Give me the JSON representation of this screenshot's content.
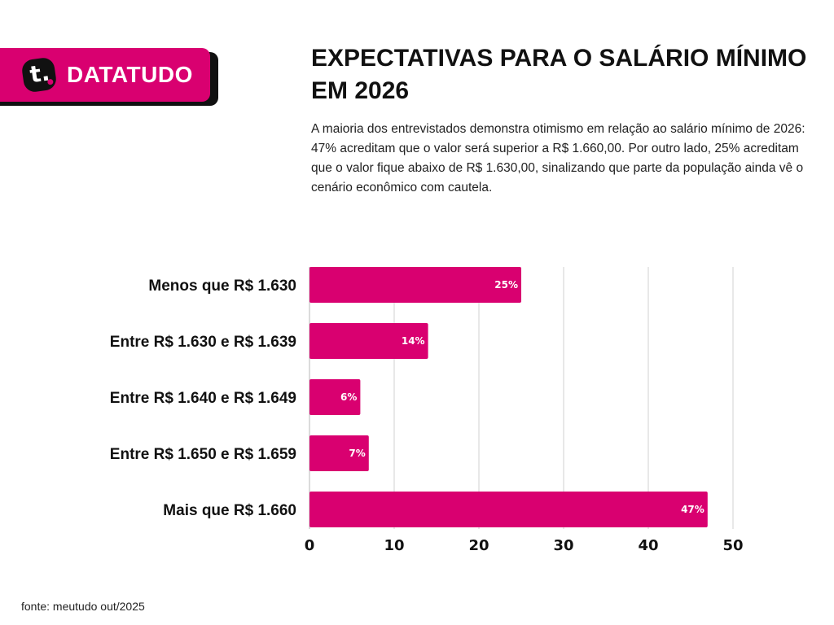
{
  "brand": {
    "name": "DATATUDO",
    "logo_letter": "t.",
    "color": "#d90070"
  },
  "header": {
    "title": "EXPECTATIVAS PARA O SALÁRIO MÍNIMO EM 2026",
    "subtitle": "A maioria dos entrevistados demonstra otimismo em relação ao salário mínimo de 2026: 47% acreditam que o valor será superior a R$ 1.660,00. Por outro lado, 25% acreditam que o valor fique abaixo de R$ 1.630,00, sinalizando que parte da população ainda vê o cenário econômico com cautela."
  },
  "footer": {
    "source": "fonte: meutudo out/2025"
  },
  "chart_data": {
    "type": "bar",
    "orientation": "horizontal",
    "categories": [
      "Menos que R$ 1.630",
      "Entre R$ 1.630 e R$ 1.639",
      "Entre R$ 1.640 e R$ 1.649",
      "Entre R$ 1.650 e R$ 1.659",
      "Mais que R$ 1.660"
    ],
    "values": [
      25,
      14,
      6,
      7,
      47
    ],
    "data_labels": [
      "25%",
      "14%",
      "6%",
      "7%",
      "47%"
    ],
    "xlim": [
      0,
      50
    ],
    "xticks": [
      "0",
      "10",
      "20",
      "30",
      "40",
      "50"
    ],
    "grid": true,
    "bar_color": "#d90070",
    "grid_color": "#e0e0e0"
  }
}
